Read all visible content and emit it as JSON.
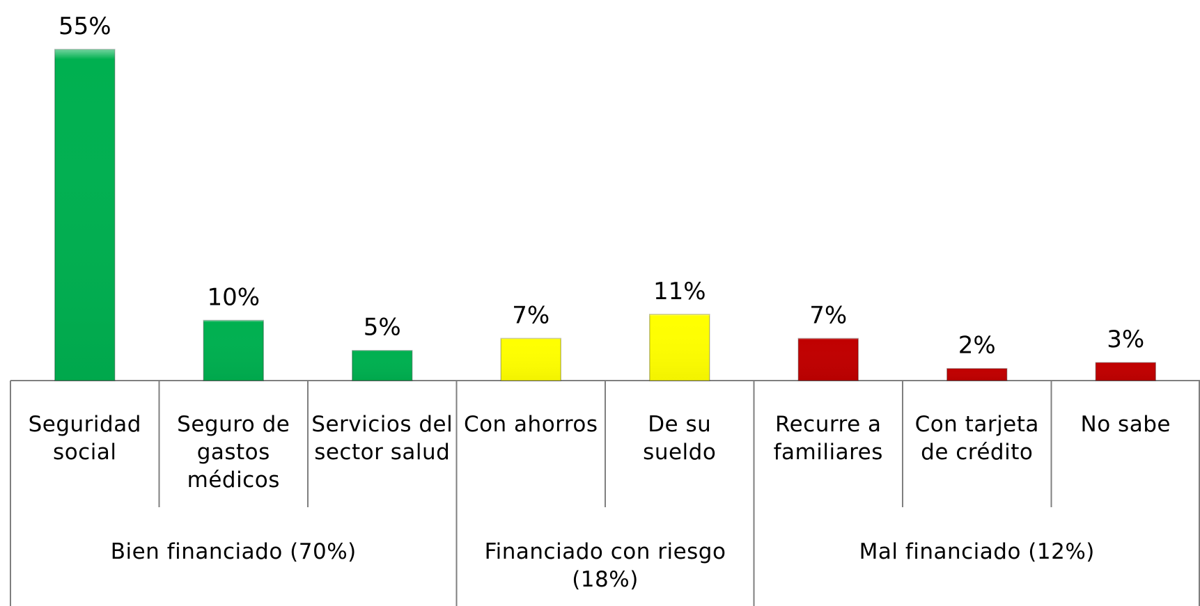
{
  "chart_data": {
    "type": "bar",
    "categories": [
      "Seguridad social",
      "Seguro de gastos médicos",
      "Servicios del sector salud",
      "Con ahorros",
      "De su sueldo",
      "Recurre a familiares",
      "Con tarjeta de crédito",
      "No sabe"
    ],
    "values": [
      55,
      10,
      5,
      7,
      11,
      7,
      2,
      3
    ],
    "value_labels": [
      "55%",
      "10%",
      "5%",
      "7%",
      "11%",
      "7%",
      "2%",
      "3%"
    ],
    "colors": [
      "#00b050",
      "#00b050",
      "#00b050",
      "#ffff00",
      "#ffff00",
      "#c00000",
      "#c00000",
      "#c00000"
    ],
    "groups": [
      {
        "label": "Bien financiado (70%)",
        "span": 3
      },
      {
        "label": "Financiado con riesgo (18%)",
        "span": 2
      },
      {
        "label": "Mal financiado (12%)",
        "span": 3
      }
    ]
  }
}
